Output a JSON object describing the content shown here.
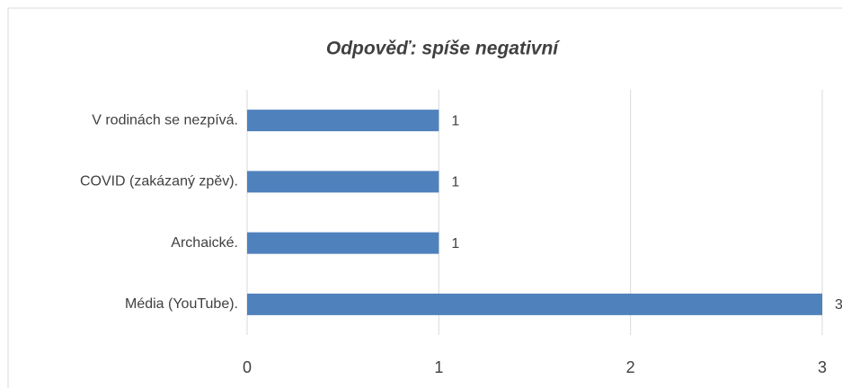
{
  "chart_data": {
    "type": "bar",
    "orientation": "horizontal",
    "title": "Odpověď: spíše negativní",
    "categories": [
      "V rodinách se nezpívá.",
      "COVID (zakázaný zpěv).",
      "Archaické.",
      "Média (YouTube)."
    ],
    "values": [
      1,
      1,
      1,
      3
    ],
    "color": "#4f81bd",
    "xlim": [
      0,
      3
    ],
    "xticks": [
      0,
      1,
      2,
      3
    ],
    "grid": true
  }
}
